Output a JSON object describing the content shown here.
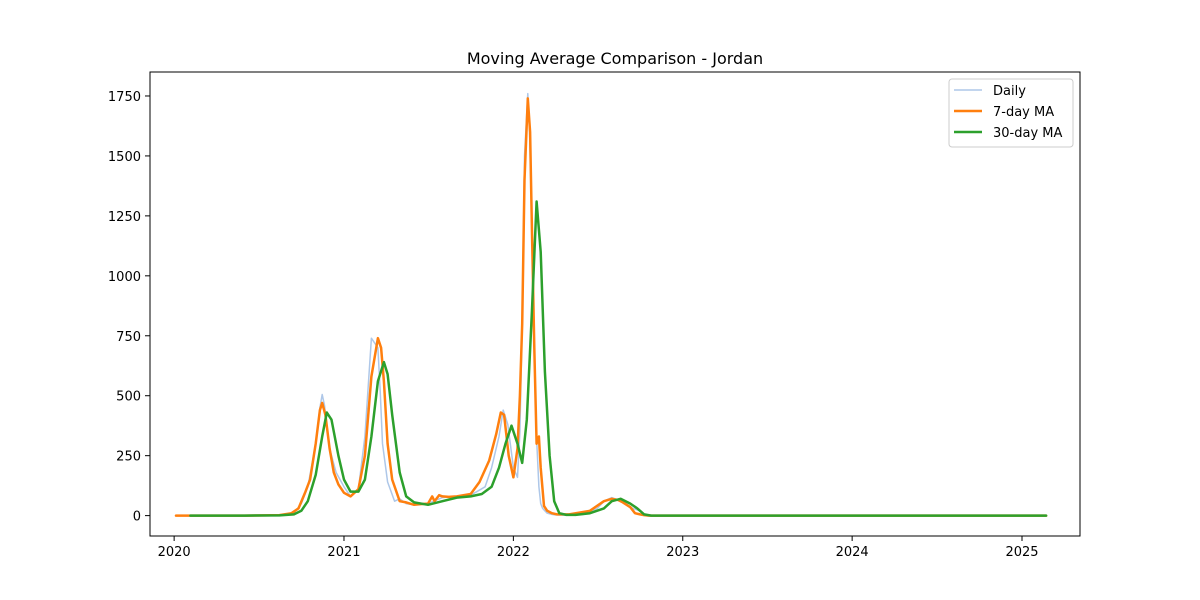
{
  "chart_data": {
    "type": "line",
    "title": "Moving Average Comparison - Jordan",
    "xlabel": "",
    "ylabel": "",
    "x_ticks": [
      "2020",
      "2021",
      "2022",
      "2023",
      "2024",
      "2025"
    ],
    "y_ticks": [
      0,
      250,
      500,
      750,
      1000,
      1250,
      1500,
      1750
    ],
    "xlim": [
      "2019-11-10",
      "2025-05-06"
    ],
    "ylim": [
      -85,
      1850
    ],
    "grid": false,
    "legend_position": "top-right",
    "series": [
      {
        "name": "Daily",
        "color": "#aec7e8",
        "x": [
          "2020-01-05",
          "2020-03-01",
          "2020-06-01",
          "2020-08-15",
          "2020-09-15",
          "2020-10-01",
          "2020-10-15",
          "2020-11-01",
          "2020-11-10",
          "2020-11-15",
          "2020-11-20",
          "2020-12-01",
          "2020-12-15",
          "2021-01-01",
          "2021-01-15",
          "2021-02-01",
          "2021-02-15",
          "2021-03-01",
          "2021-03-15",
          "2021-03-20",
          "2021-03-25",
          "2021-04-05",
          "2021-04-20",
          "2021-05-01",
          "2021-05-15",
          "2021-06-01",
          "2021-07-01",
          "2021-08-01",
          "2021-08-15",
          "2021-09-01",
          "2021-10-01",
          "2021-11-01",
          "2021-11-15",
          "2021-12-01",
          "2021-12-10",
          "2021-12-20",
          "2022-01-01",
          "2022-01-10",
          "2022-01-15",
          "2022-01-20",
          "2022-01-25",
          "2022-02-01",
          "2022-02-05",
          "2022-02-10",
          "2022-02-15",
          "2022-02-20",
          "2022-02-25",
          "2022-03-01",
          "2022-03-05",
          "2022-03-10",
          "2022-03-15",
          "2022-03-25",
          "2022-04-01",
          "2022-04-15",
          "2022-05-01",
          "2022-06-01",
          "2022-07-01",
          "2022-07-15",
          "2022-08-01",
          "2022-08-15",
          "2022-09-01",
          "2022-09-15",
          "2022-10-01",
          "2022-10-10",
          "2022-10-20",
          "2022-11-01",
          "2023-01-01",
          "2024-01-01",
          "2025-02-22"
        ],
        "values": [
          0,
          0,
          0,
          2,
          10,
          50,
          120,
          300,
          450,
          505,
          460,
          280,
          180,
          120,
          80,
          110,
          330,
          740,
          700,
          520,
          300,
          140,
          60,
          70,
          50,
          45,
          50,
          75,
          78,
          80,
          85,
          120,
          200,
          330,
          440,
          380,
          200,
          160,
          350,
          800,
          1500,
          1760,
          1600,
          1200,
          700,
          320,
          120,
          50,
          30,
          20,
          10,
          5,
          3,
          2,
          2,
          5,
          30,
          60,
          75,
          65,
          50,
          30,
          20,
          5,
          2,
          0,
          0,
          0,
          0
        ]
      },
      {
        "name": "7-day MA",
        "color": "#ff7f0e",
        "x": [
          "2020-01-05",
          "2020-03-01",
          "2020-06-01",
          "2020-08-15",
          "2020-09-10",
          "2020-09-25",
          "2020-10-10",
          "2020-10-20",
          "2020-11-01",
          "2020-11-10",
          "2020-11-15",
          "2020-11-22",
          "2020-12-01",
          "2020-12-10",
          "2020-12-20",
          "2021-01-01",
          "2021-01-15",
          "2021-02-01",
          "2021-02-15",
          "2021-03-01",
          "2021-03-15",
          "2021-03-22",
          "2021-03-28",
          "2021-04-05",
          "2021-04-15",
          "2021-05-01",
          "2021-05-15",
          "2021-06-01",
          "2021-06-15",
          "2021-07-01",
          "2021-07-10",
          "2021-07-15",
          "2021-07-25",
          "2021-08-01",
          "2021-08-15",
          "2021-09-01",
          "2021-10-01",
          "2021-10-20",
          "2021-11-10",
          "2021-11-25",
          "2021-12-05",
          "2021-12-12",
          "2021-12-22",
          "2022-01-01",
          "2022-01-10",
          "2022-01-15",
          "2022-01-20",
          "2022-01-25",
          "2022-02-01",
          "2022-02-06",
          "2022-02-10",
          "2022-02-15",
          "2022-02-20",
          "2022-02-25",
          "2022-03-01",
          "2022-03-08",
          "2022-03-15",
          "2022-03-25",
          "2022-04-05",
          "2022-05-01",
          "2022-06-15",
          "2022-07-15",
          "2022-08-01",
          "2022-08-15",
          "2022-08-25",
          "2022-09-10",
          "2022-09-20",
          "2022-10-01",
          "2022-10-10",
          "2022-10-20",
          "2022-11-01",
          "2023-01-01",
          "2024-01-01",
          "2025-02-22"
        ],
        "values": [
          0,
          0,
          0,
          2,
          10,
          30,
          100,
          150,
          300,
          440,
          470,
          420,
          280,
          180,
          130,
          95,
          80,
          110,
          250,
          580,
          740,
          700,
          560,
          300,
          150,
          60,
          55,
          45,
          48,
          50,
          80,
          60,
          85,
          80,
          78,
          80,
          90,
          140,
          230,
          340,
          430,
          420,
          250,
          160,
          280,
          500,
          800,
          1400,
          1740,
          1600,
          1200,
          700,
          300,
          330,
          200,
          40,
          20,
          10,
          5,
          5,
          20,
          60,
          70,
          65,
          55,
          35,
          10,
          5,
          2,
          0,
          0,
          0,
          0,
          0
        ]
      },
      {
        "name": "30-day MA",
        "color": "#2ca02c",
        "x": [
          "2020-02-05",
          "2020-06-01",
          "2020-08-15",
          "2020-09-15",
          "2020-10-01",
          "2020-10-15",
          "2020-11-01",
          "2020-11-15",
          "2020-11-25",
          "2020-12-05",
          "2020-12-20",
          "2021-01-01",
          "2021-01-15",
          "2021-02-01",
          "2021-02-15",
          "2021-03-01",
          "2021-03-15",
          "2021-03-28",
          "2021-04-05",
          "2021-04-15",
          "2021-05-01",
          "2021-05-15",
          "2021-06-01",
          "2021-07-01",
          "2021-08-01",
          "2021-09-01",
          "2021-10-01",
          "2021-10-25",
          "2021-11-15",
          "2021-12-01",
          "2021-12-15",
          "2021-12-28",
          "2022-01-10",
          "2022-01-20",
          "2022-01-30",
          "2022-02-10",
          "2022-02-20",
          "2022-03-01",
          "2022-03-10",
          "2022-03-20",
          "2022-03-30",
          "2022-04-10",
          "2022-04-25",
          "2022-05-15",
          "2022-06-15",
          "2022-07-15",
          "2022-08-01",
          "2022-08-20",
          "2022-09-10",
          "2022-09-25",
          "2022-10-10",
          "2022-10-25",
          "2022-11-10",
          "2023-01-01",
          "2024-01-01",
          "2025-02-22"
        ],
        "values": [
          0,
          0,
          1,
          5,
          20,
          60,
          170,
          330,
          430,
          400,
          250,
          150,
          100,
          100,
          150,
          330,
          560,
          640,
          590,
          420,
          180,
          80,
          55,
          45,
          60,
          75,
          80,
          90,
          120,
          200,
          300,
          375,
          300,
          220,
          400,
          850,
          1310,
          1100,
          600,
          250,
          60,
          10,
          3,
          3,
          10,
          30,
          60,
          70,
          50,
          30,
          5,
          0,
          0,
          0,
          0,
          0
        ]
      }
    ]
  }
}
